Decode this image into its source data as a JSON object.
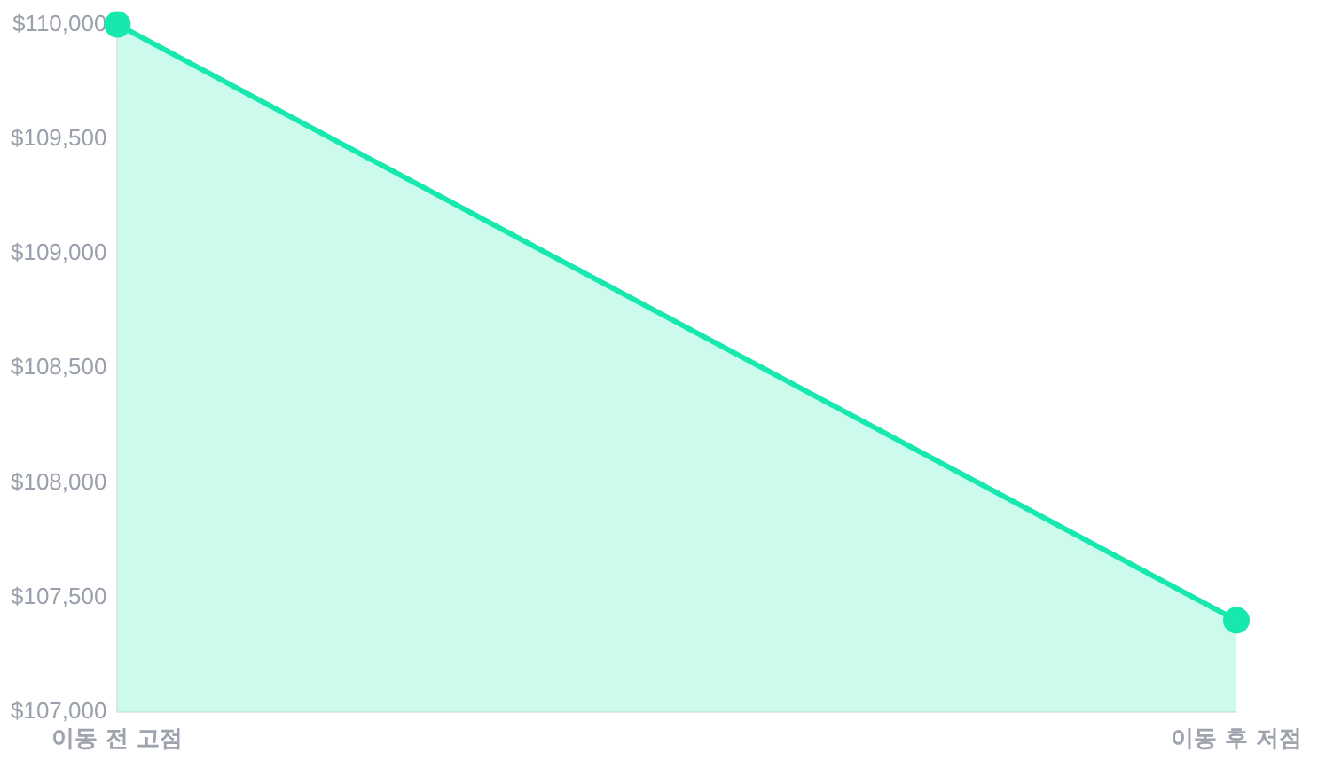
{
  "chart_data": {
    "type": "area",
    "categories": [
      "이동 전 고점",
      "이동 후 저점"
    ],
    "series": [
      {
        "color": "#17e8ae",
        "values": [
          110000,
          107400
        ]
      }
    ],
    "ylim": [
      107000,
      110000
    ],
    "yticks": [
      {
        "value": 107000,
        "label": "$107,000"
      },
      {
        "value": 107500,
        "label": "$107,500"
      },
      {
        "value": 108000,
        "label": "$108,000"
      },
      {
        "value": 108500,
        "label": "$108,500"
      },
      {
        "value": 109000,
        "label": "$109,000"
      },
      {
        "value": 109500,
        "label": "$109,500"
      },
      {
        "value": 110000,
        "label": "$110,000"
      }
    ],
    "grid": false,
    "legend": false,
    "marker": "circle",
    "line_style": "solid"
  }
}
